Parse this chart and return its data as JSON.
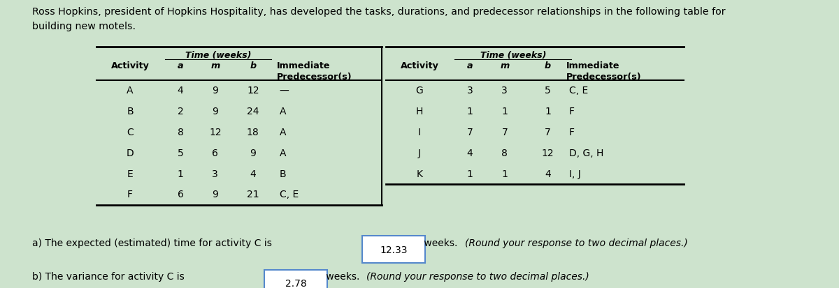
{
  "header_line1": "Ross Hopkins, president of Hopkins Hospitality, has developed the tasks, durations, and predecessor relationships in the following table for",
  "header_line2": "building new motels.",
  "table1_subheader": "Time (weeks)",
  "table1_col_headers": [
    "Activity",
    "a",
    "m",
    "b",
    "Immediate\nPredecessor(s)"
  ],
  "table1_rows": [
    [
      "A",
      "4",
      "9",
      "12",
      "—"
    ],
    [
      "B",
      "2",
      "9",
      "24",
      "A"
    ],
    [
      "C",
      "8",
      "12",
      "18",
      "A"
    ],
    [
      "D",
      "5",
      "6",
      "9",
      "A"
    ],
    [
      "E",
      "1",
      "3",
      "4",
      "B"
    ],
    [
      "F",
      "6",
      "9",
      "21",
      "C, E"
    ]
  ],
  "table2_subheader": "Time (weeks)",
  "table2_col_headers": [
    "Activity",
    "a",
    "m",
    "b",
    "Immediate\nPredecessor(s)"
  ],
  "table2_rows": [
    [
      "G",
      "3",
      "3",
      "5",
      "C, E"
    ],
    [
      "H",
      "1",
      "1",
      "1",
      "F"
    ],
    [
      "I",
      "7",
      "7",
      "7",
      "F"
    ],
    [
      "J",
      "4",
      "8",
      "12",
      "D, G, H"
    ],
    [
      "K",
      "1",
      "1",
      "4",
      "I, J"
    ]
  ],
  "answer_a_text": "a) The expected (estimated) time for activity C is",
  "answer_a_value": "12.33",
  "answer_a_suffix": " weeks. ",
  "answer_a_italic": "(Round your response to two decimal places.)",
  "answer_b_text": "b) The variance for activity C is",
  "answer_b_value": "2.78",
  "answer_b_suffix": " weeks. ",
  "answer_b_italic": "(Round your response to two decimal places.)",
  "bg_color": "#cde3cd",
  "table_bg": "#ffffff"
}
